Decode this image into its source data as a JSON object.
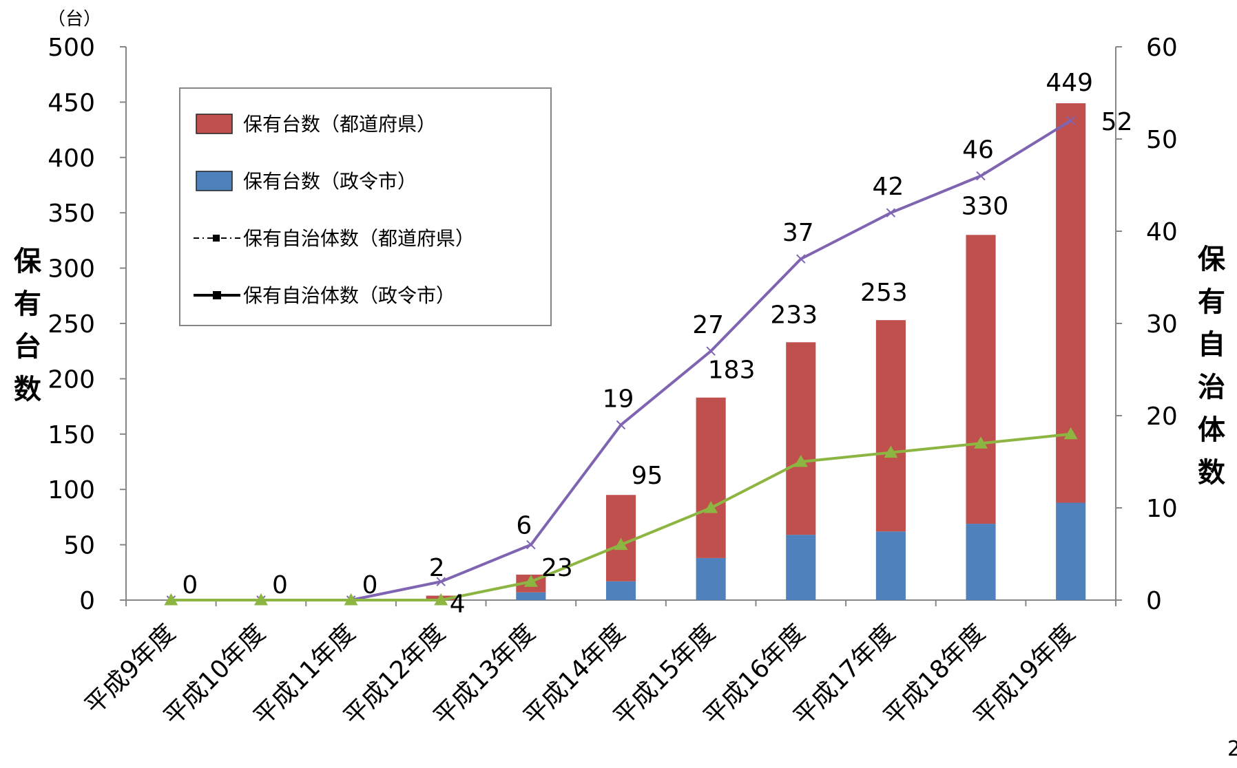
{
  "chart_data": {
    "type": "bar",
    "title": "",
    "categories": [
      "平成9年度",
      "平成10年度",
      "平成11年度",
      "平成12年度",
      "平成13年度",
      "平成14年度",
      "平成15年度",
      "平成16年度",
      "平成17年度",
      "平成18年度",
      "平成19年度"
    ],
    "left_axis": {
      "label_chars": [
        "保",
        "有",
        "台",
        "数"
      ],
      "unit": "（台）",
      "ylim": [
        0,
        500
      ],
      "ticks": [
        "0",
        "50",
        "100",
        "150",
        "200",
        "250",
        "300",
        "350",
        "400",
        "450",
        "500"
      ]
    },
    "right_axis": {
      "label_chars": [
        "保",
        "有",
        "自",
        "治",
        "体",
        "数"
      ],
      "ylim": [
        0,
        60
      ],
      "ticks": [
        "0",
        "10",
        "20",
        "30",
        "40",
        "50",
        "60"
      ]
    },
    "bar_series": [
      {
        "name": "保有台数（政令市）",
        "color": "#4F81BD",
        "values": [
          0,
          0,
          0,
          0,
          7,
          17,
          38,
          59,
          62,
          69,
          88
        ]
      },
      {
        "name": "保有台数（都道府県）",
        "color": "#C0504D",
        "values": [
          0,
          0,
          0,
          4,
          16,
          78,
          145,
          174,
          191,
          261,
          361
        ]
      }
    ],
    "bar_totals": [
      0,
      0,
      0,
      4,
      23,
      95,
      183,
      233,
      253,
      330,
      449
    ],
    "bar_total_labels": [
      "",
      "",
      "",
      "4",
      "23",
      "95",
      "183",
      "233",
      "253",
      "330",
      "449"
    ],
    "line_series": [
      {
        "name": "保有自治体数（都道府県）",
        "color": "#7F64B2",
        "values": [
          0,
          0,
          0,
          2,
          6,
          19,
          27,
          37,
          42,
          46,
          52
        ],
        "labels": [
          "0",
          "0",
          "0",
          "2",
          "6",
          "19",
          "27",
          "37",
          "42",
          "46",
          "52"
        ]
      },
      {
        "name": "保有自治体数（政令市）",
        "color": "#8DB542",
        "values": [
          0,
          0,
          0,
          0,
          2,
          6,
          10,
          15,
          16,
          17,
          18
        ]
      }
    ],
    "legend": {
      "placement": "top-left",
      "items": [
        {
          "label": "保有台数（都道府県）",
          "color": "#C0504D",
          "marker": "box"
        },
        {
          "label": "保有台数（政令市）",
          "color": "#4F81BD",
          "marker": "box"
        },
        {
          "label": "保有自治体数（都道府県）",
          "color": "#000000",
          "marker": "dash-dot-line"
        },
        {
          "label": "保有自治体数（政令市）",
          "color": "#000000",
          "marker": "solid-line"
        }
      ]
    },
    "grid": false
  },
  "page_number": "2"
}
